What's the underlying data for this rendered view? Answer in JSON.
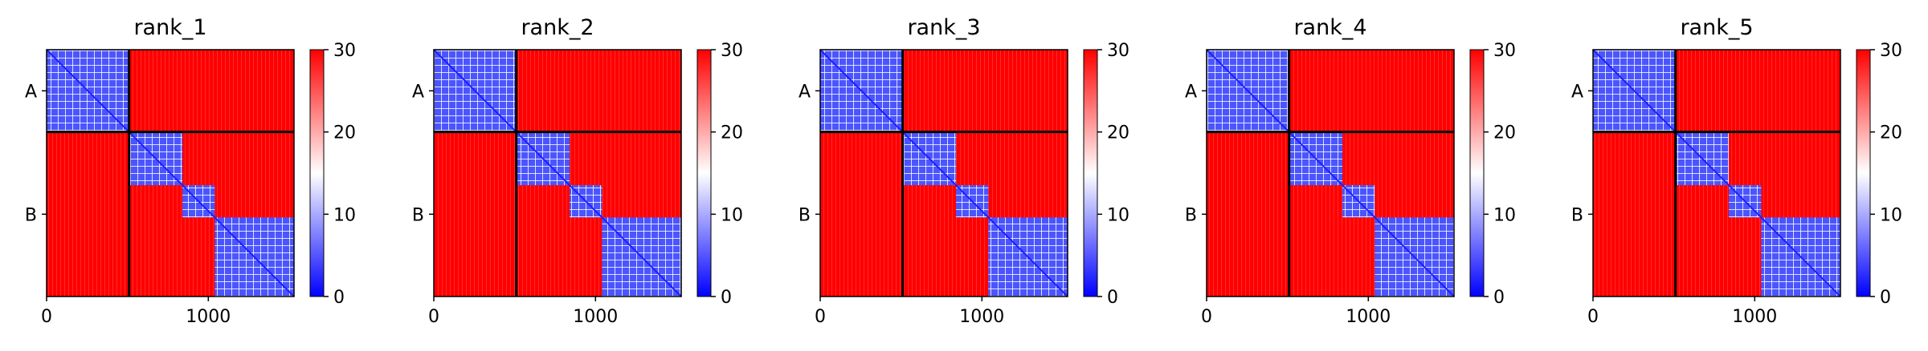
{
  "chart_data": [
    {
      "type": "heatmap",
      "title": "rank_1",
      "xlabel": "",
      "ylabel": "",
      "xlim": [
        0,
        1530
      ],
      "xticks": [
        "0",
        "1000"
      ],
      "yticklabels": [
        "A",
        "B"
      ],
      "chain_boundary": 510,
      "colorbar": {
        "range": [
          0,
          30
        ],
        "ticks": [
          "0",
          "10",
          "20",
          "30"
        ],
        "colors": [
          "#0000ff",
          "#ffffff",
          "#ff0000"
        ]
      },
      "domains_A": [
        [
          0,
          510
        ]
      ],
      "domains_B": [
        [
          510,
          840
        ],
        [
          840,
          1040
        ],
        [
          1040,
          1530
        ]
      ]
    },
    {
      "type": "heatmap",
      "title": "rank_2",
      "xlabel": "",
      "ylabel": "",
      "xlim": [
        0,
        1530
      ],
      "xticks": [
        "0",
        "1000"
      ],
      "yticklabels": [
        "A",
        "B"
      ],
      "chain_boundary": 510,
      "colorbar": {
        "range": [
          0,
          30
        ],
        "ticks": [
          "0",
          "10",
          "20",
          "30"
        ],
        "colors": [
          "#0000ff",
          "#ffffff",
          "#ff0000"
        ]
      },
      "domains_A": [
        [
          0,
          510
        ]
      ],
      "domains_B": [
        [
          510,
          840
        ],
        [
          840,
          1040
        ],
        [
          1040,
          1530
        ]
      ]
    },
    {
      "type": "heatmap",
      "title": "rank_3",
      "xlabel": "",
      "ylabel": "",
      "xlim": [
        0,
        1530
      ],
      "xticks": [
        "0",
        "1000"
      ],
      "yticklabels": [
        "A",
        "B"
      ],
      "chain_boundary": 510,
      "colorbar": {
        "range": [
          0,
          30
        ],
        "ticks": [
          "0",
          "10",
          "20",
          "30"
        ],
        "colors": [
          "#0000ff",
          "#ffffff",
          "#ff0000"
        ]
      },
      "domains_A": [
        [
          0,
          510
        ]
      ],
      "domains_B": [
        [
          510,
          840
        ],
        [
          840,
          1040
        ],
        [
          1040,
          1530
        ]
      ]
    },
    {
      "type": "heatmap",
      "title": "rank_4",
      "xlabel": "",
      "ylabel": "",
      "xlim": [
        0,
        1530
      ],
      "xticks": [
        "0",
        "1000"
      ],
      "yticklabels": [
        "A",
        "B"
      ],
      "chain_boundary": 510,
      "colorbar": {
        "range": [
          0,
          30
        ],
        "ticks": [
          "0",
          "10",
          "20",
          "30"
        ],
        "colors": [
          "#0000ff",
          "#ffffff",
          "#ff0000"
        ]
      },
      "domains_A": [
        [
          0,
          510
        ]
      ],
      "domains_B": [
        [
          510,
          840
        ],
        [
          840,
          1040
        ],
        [
          1040,
          1530
        ]
      ]
    },
    {
      "type": "heatmap",
      "title": "rank_5",
      "xlabel": "",
      "ylabel": "",
      "xlim": [
        0,
        1530
      ],
      "xticks": [
        "0",
        "1000"
      ],
      "yticklabels": [
        "A",
        "B"
      ],
      "chain_boundary": 510,
      "colorbar": {
        "range": [
          0,
          30
        ],
        "ticks": [
          "0",
          "10",
          "20",
          "30"
        ],
        "colors": [
          "#0000ff",
          "#ffffff",
          "#ff0000"
        ]
      },
      "domains_A": [
        [
          0,
          510
        ]
      ],
      "domains_B": [
        [
          510,
          840
        ],
        [
          840,
          1040
        ],
        [
          1040,
          1530
        ]
      ]
    }
  ]
}
